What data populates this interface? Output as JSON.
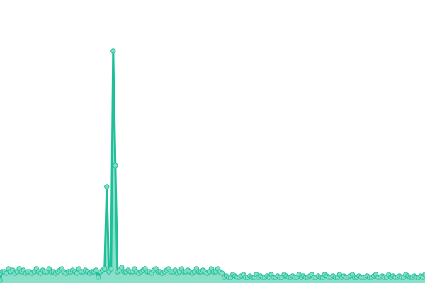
{
  "chart_data": {
    "type": "area",
    "title": "",
    "xlabel": "",
    "ylabel": "",
    "ylim": [
      0,
      100
    ],
    "grid": false,
    "markers": true,
    "colors": {
      "line": "#1fbf98",
      "fill": "#8adfc8",
      "marker_fill": "#82ddc5",
      "marker_stroke": "#25c29c"
    },
    "series": [
      {
        "values": [
          1,
          4,
          4,
          3.5,
          5,
          4,
          4.5,
          3.5,
          4,
          5,
          4,
          4.5,
          3.5,
          4,
          4,
          3.5,
          4,
          5,
          4,
          3.5,
          4.5,
          4,
          4,
          5,
          4,
          4,
          3.5,
          4,
          4.5,
          5,
          4,
          3.5,
          4,
          4,
          4.5,
          4,
          3.5,
          5,
          4,
          4,
          4.5,
          4,
          3.5,
          4,
          4,
          4.5,
          2,
          4,
          4.5,
          5,
          34,
          4,
          5,
          82,
          41.5,
          4,
          4.5,
          5.5,
          4,
          4,
          4.5,
          4,
          4,
          5,
          4,
          3.5,
          4,
          4.5,
          5,
          4,
          4,
          3.5,
          4.5,
          5,
          4,
          4,
          3.5,
          4,
          4.5,
          5,
          4,
          4,
          4.5,
          3.5,
          4,
          5,
          4,
          4,
          4.5,
          4,
          3.5,
          4,
          5,
          4,
          4,
          4.5,
          4,
          3.5,
          4,
          5,
          4,
          4,
          5,
          4,
          3.5,
          2,
          2.5,
          2,
          2,
          3,
          2.5,
          2,
          2,
          2.5,
          3,
          2,
          2,
          2.5,
          2,
          2,
          3,
          2,
          2.5,
          2,
          2,
          2.5,
          2,
          3,
          2,
          2,
          2.5,
          2,
          2,
          3,
          2.5,
          2,
          2,
          2.5,
          2,
          2,
          3,
          2,
          2.5,
          2,
          2,
          2.5,
          3,
          2,
          2,
          2.5,
          2,
          2,
          3,
          2.5,
          2,
          2,
          2.5,
          2,
          2,
          3,
          2,
          2.5,
          2,
          2,
          2.5,
          3,
          2,
          2,
          2.5,
          2,
          2,
          2,
          2.5,
          2,
          2,
          2.5,
          3,
          2,
          2,
          2.5,
          2,
          2,
          3,
          2,
          2.5,
          2,
          2,
          2.5,
          2,
          2,
          3,
          2.5,
          2,
          2,
          2.5,
          2,
          2,
          2.5,
          2,
          3
        ]
      }
    ]
  }
}
